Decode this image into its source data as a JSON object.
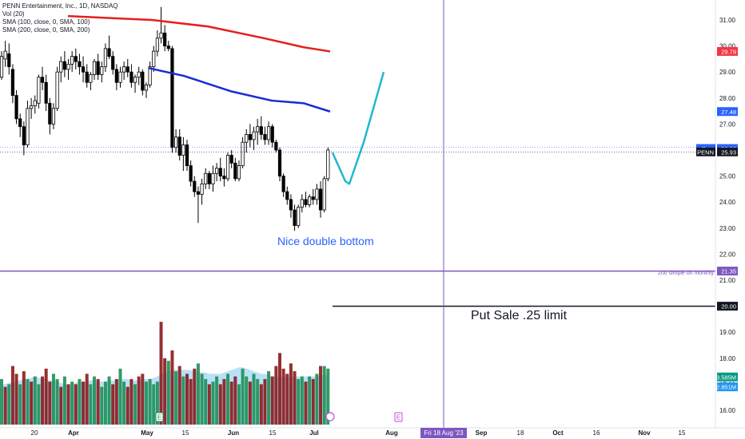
{
  "legend": {
    "title": "PENN Entertainment, Inc., 1D, NASDAQ",
    "vol": "Vol (20)",
    "sma100": "SMA (100, close, 0, SMA, 100)",
    "sma200": "SMA (200, close, 0, SMA, 200)"
  },
  "price_tags": [
    {
      "label": "29.79",
      "value": 29.79,
      "color": "#f23645"
    },
    {
      "label": "27.48",
      "value": 27.48,
      "color": "#2962ff"
    },
    {
      "label": "Post",
      "value": 26.06,
      "color": "#2962ff",
      "value_text": "26.06"
    },
    {
      "label": "PENN",
      "value": 25.93,
      "color": "#131722",
      "value_text": "25.93"
    },
    {
      "label": "21.35",
      "value": 21.35,
      "color": "#7e57c2"
    },
    {
      "label": "20.00",
      "value": 20.0,
      "color": "#131722"
    },
    {
      "label": "3.585M",
      "value": 17.28,
      "color": "#089981"
    },
    {
      "label": "2.851M",
      "value": 16.9,
      "color": "#2196f3"
    }
  ],
  "annotations": {
    "double_bottom": "Nice double bottom",
    "put_sale": "Put Sale  .25 limit",
    "sma200_monthly": "200 simple on monthly",
    "cursor_date": "Fri 18 Aug '23",
    "earnings_marker": "E"
  },
  "chart_data": {
    "type": "candlestick",
    "title": "PENN Entertainment, Inc., 1D, NASDAQ",
    "yaxis_ticks": [
      31.0,
      30.0,
      29.0,
      28.0,
      27.0,
      25.0,
      24.0,
      23.0,
      22.0,
      21.0,
      19.0,
      18.0,
      17.0,
      16.0
    ],
    "ylim": [
      15.2,
      31.8
    ],
    "xaxis_ticks": [
      "20",
      "Apr",
      "May",
      "15",
      "Jun",
      "15",
      "Jul",
      "Aug",
      "Sep",
      "18",
      "Oct",
      "16",
      "Nov",
      "15"
    ],
    "candles": [
      [
        28.8,
        29.8,
        28.7,
        29.6
      ],
      [
        29.5,
        30.2,
        29.2,
        29.8
      ],
      [
        29.7,
        30.1,
        28.9,
        29.2
      ],
      [
        29.1,
        29.3,
        27.8,
        28.1
      ],
      [
        28.1,
        28.3,
        27.0,
        27.2
      ],
      [
        27.2,
        27.4,
        26.5,
        26.9
      ],
      [
        26.9,
        27.1,
        25.8,
        26.2
      ],
      [
        26.2,
        27.9,
        26.1,
        27.6
      ],
      [
        27.6,
        28.0,
        27.2,
        27.7
      ],
      [
        27.7,
        28.1,
        27.4,
        27.9
      ],
      [
        27.8,
        28.9,
        27.6,
        28.8
      ],
      [
        28.8,
        29.2,
        28.3,
        28.6
      ],
      [
        28.6,
        28.9,
        27.5,
        27.8
      ],
      [
        27.8,
        28.0,
        26.6,
        27.0
      ],
      [
        27.0,
        27.8,
        26.8,
        27.6
      ],
      [
        27.6,
        29.2,
        27.5,
        29.0
      ],
      [
        29.0,
        29.6,
        28.6,
        29.4
      ],
      [
        29.4,
        29.8,
        28.8,
        29.1
      ],
      [
        29.1,
        29.5,
        28.7,
        29.3
      ],
      [
        29.3,
        29.8,
        29.0,
        29.6
      ],
      [
        29.6,
        29.9,
        29.1,
        29.4
      ],
      [
        29.4,
        29.7,
        28.9,
        29.2
      ],
      [
        29.2,
        29.6,
        28.6,
        29.0
      ],
      [
        29.0,
        29.3,
        28.4,
        28.6
      ],
      [
        28.6,
        29.0,
        28.3,
        28.9
      ],
      [
        28.9,
        29.5,
        28.7,
        29.4
      ],
      [
        29.4,
        29.7,
        28.7,
        28.9
      ],
      [
        28.9,
        29.4,
        28.6,
        29.2
      ],
      [
        29.2,
        30.1,
        29.0,
        29.9
      ],
      [
        29.9,
        30.4,
        29.5,
        29.6
      ],
      [
        29.6,
        29.8,
        28.9,
        29.1
      ],
      [
        29.1,
        29.3,
        28.3,
        28.6
      ],
      [
        28.6,
        29.2,
        28.4,
        29.0
      ],
      [
        29.0,
        29.4,
        28.7,
        29.2
      ],
      [
        29.2,
        29.5,
        28.8,
        29.0
      ],
      [
        29.0,
        29.3,
        28.4,
        28.6
      ],
      [
        28.6,
        28.9,
        28.2,
        28.8
      ],
      [
        28.8,
        29.2,
        28.5,
        29.0
      ],
      [
        29.0,
        29.1,
        28.1,
        28.3
      ],
      [
        28.3,
        28.6,
        28.0,
        28.5
      ],
      [
        28.5,
        29.4,
        28.4,
        29.2
      ],
      [
        29.2,
        30.0,
        29.0,
        29.8
      ],
      [
        29.8,
        30.6,
        29.6,
        30.3
      ],
      [
        30.3,
        31.5,
        30.1,
        30.5
      ],
      [
        30.5,
        30.8,
        29.8,
        30.0
      ],
      [
        30.0,
        30.2,
        29.8,
        29.9
      ],
      [
        29.9,
        30.0,
        25.9,
        26.1
      ],
      [
        26.1,
        26.8,
        25.9,
        26.5
      ],
      [
        26.5,
        26.8,
        25.6,
        25.8
      ],
      [
        25.8,
        26.5,
        25.2,
        26.2
      ],
      [
        26.2,
        26.4,
        25.2,
        25.4
      ],
      [
        25.4,
        25.6,
        24.6,
        24.8
      ],
      [
        24.8,
        25.0,
        24.2,
        24.4
      ],
      [
        24.4,
        24.6,
        23.2,
        24.3
      ],
      [
        24.3,
        24.9,
        23.9,
        24.7
      ],
      [
        24.7,
        25.3,
        24.5,
        25.1
      ],
      [
        25.1,
        25.2,
        24.5,
        24.7
      ],
      [
        24.7,
        25.4,
        24.4,
        25.1
      ],
      [
        25.1,
        25.5,
        24.8,
        25.3
      ],
      [
        25.3,
        25.7,
        24.8,
        25.0
      ],
      [
        25.0,
        25.3,
        24.6,
        24.9
      ],
      [
        24.9,
        25.9,
        24.8,
        25.8
      ],
      [
        25.8,
        26.0,
        25.3,
        25.5
      ],
      [
        25.5,
        25.7,
        24.8,
        24.9
      ],
      [
        24.9,
        25.6,
        24.8,
        25.4
      ],
      [
        25.4,
        26.5,
        25.3,
        26.3
      ],
      [
        26.3,
        26.8,
        25.9,
        26.6
      ],
      [
        26.6,
        27.0,
        26.1,
        26.4
      ],
      [
        26.4,
        26.9,
        26.0,
        26.7
      ],
      [
        26.7,
        27.2,
        26.2,
        26.9
      ],
      [
        26.9,
        27.3,
        26.4,
        26.6
      ],
      [
        26.6,
        26.9,
        26.2,
        26.4
      ],
      [
        26.4,
        27.1,
        26.2,
        26.9
      ],
      [
        26.9,
        27.0,
        26.1,
        26.3
      ],
      [
        26.3,
        26.4,
        25.9,
        26.0
      ],
      [
        26.0,
        26.1,
        24.8,
        25.0
      ],
      [
        25.0,
        25.1,
        24.2,
        24.4
      ],
      [
        24.4,
        24.6,
        23.9,
        24.1
      ],
      [
        24.1,
        24.3,
        23.4,
        23.7
      ],
      [
        23.7,
        23.9,
        22.9,
        23.1
      ],
      [
        23.1,
        23.9,
        23.0,
        23.8
      ],
      [
        23.8,
        24.3,
        23.6,
        24.1
      ],
      [
        24.1,
        24.4,
        23.8,
        23.9
      ],
      [
        23.9,
        24.3,
        23.8,
        24.2
      ],
      [
        24.2,
        24.5,
        23.9,
        24.1
      ],
      [
        24.1,
        24.7,
        23.9,
        24.5
      ],
      [
        24.5,
        24.8,
        23.4,
        23.7
      ],
      [
        23.7,
        25.0,
        23.6,
        24.9
      ],
      [
        24.9,
        26.1,
        24.8,
        26.0
      ]
    ],
    "volume": [
      [
        17.2,
        1
      ],
      [
        16.9,
        0
      ],
      [
        17.0,
        1
      ],
      [
        17.7,
        0
      ],
      [
        17.4,
        0
      ],
      [
        17.0,
        1
      ],
      [
        17.5,
        0
      ],
      [
        17.2,
        1
      ],
      [
        17.1,
        0
      ],
      [
        17.3,
        1
      ],
      [
        17.0,
        1
      ],
      [
        17.3,
        0
      ],
      [
        17.6,
        0
      ],
      [
        17.1,
        0
      ],
      [
        17.4,
        1
      ],
      [
        17.2,
        1
      ],
      [
        16.9,
        0
      ],
      [
        17.3,
        1
      ],
      [
        17.0,
        0
      ],
      [
        17.1,
        1
      ],
      [
        17.0,
        0
      ],
      [
        17.2,
        1
      ],
      [
        17.1,
        0
      ],
      [
        17.4,
        0
      ],
      [
        17.0,
        1
      ],
      [
        17.3,
        1
      ],
      [
        17.2,
        0
      ],
      [
        16.9,
        1
      ],
      [
        17.1,
        1
      ],
      [
        17.3,
        1
      ],
      [
        17.0,
        0
      ],
      [
        17.2,
        0
      ],
      [
        17.6,
        1
      ],
      [
        17.1,
        1
      ],
      [
        16.9,
        0
      ],
      [
        17.2,
        0
      ],
      [
        17.0,
        1
      ],
      [
        17.3,
        0
      ],
      [
        17.4,
        0
      ],
      [
        17.1,
        1
      ],
      [
        17.2,
        1
      ],
      [
        17.0,
        1
      ],
      [
        17.1,
        1
      ],
      [
        19.4,
        0
      ],
      [
        18.0,
        0
      ],
      [
        17.9,
        1
      ],
      [
        18.3,
        0
      ],
      [
        17.5,
        1
      ],
      [
        17.7,
        0
      ],
      [
        17.3,
        1
      ],
      [
        17.4,
        0
      ],
      [
        17.2,
        0
      ],
      [
        17.6,
        0
      ],
      [
        17.8,
        1
      ],
      [
        17.4,
        1
      ],
      [
        17.2,
        1
      ],
      [
        17.0,
        0
      ],
      [
        17.1,
        1
      ],
      [
        17.3,
        1
      ],
      [
        17.0,
        0
      ],
      [
        17.2,
        0
      ],
      [
        17.4,
        1
      ],
      [
        17.1,
        0
      ],
      [
        17.3,
        0
      ],
      [
        17.0,
        1
      ],
      [
        17.6,
        1
      ],
      [
        17.3,
        1
      ],
      [
        17.1,
        0
      ],
      [
        17.4,
        1
      ],
      [
        17.2,
        1
      ],
      [
        17.0,
        0
      ],
      [
        17.2,
        0
      ],
      [
        17.5,
        1
      ],
      [
        17.3,
        0
      ],
      [
        17.7,
        0
      ],
      [
        18.2,
        0
      ],
      [
        17.6,
        0
      ],
      [
        17.4,
        0
      ],
      [
        17.8,
        0
      ],
      [
        17.5,
        0
      ],
      [
        17.2,
        1
      ],
      [
        17.3,
        1
      ],
      [
        17.1,
        0
      ],
      [
        17.3,
        1
      ],
      [
        17.2,
        0
      ],
      [
        17.4,
        1
      ],
      [
        17.7,
        0
      ],
      [
        17.7,
        1
      ],
      [
        17.6,
        1
      ]
    ],
    "volume_ma": [
      17.0,
      17.0,
      17.05,
      17.1,
      17.1,
      17.15,
      17.2,
      17.2,
      17.25,
      17.3,
      17.25,
      17.2,
      17.2,
      17.15,
      17.1,
      17.1,
      17.05,
      17.0,
      17.0,
      17.0,
      17.05,
      17.1,
      17.1,
      17.1,
      17.15,
      17.15,
      17.1,
      17.1,
      17.1,
      17.15,
      17.15,
      17.15,
      17.2,
      17.2,
      17.2,
      17.15,
      17.15,
      17.15,
      17.2,
      17.2,
      17.2,
      17.25,
      17.3,
      17.4,
      17.45,
      17.5,
      17.55,
      17.55,
      17.55,
      17.55,
      17.55,
      17.55,
      17.5,
      17.5,
      17.45,
      17.45,
      17.4,
      17.4,
      17.4,
      17.4,
      17.45,
      17.5,
      17.55,
      17.6,
      17.65,
      17.65,
      17.6,
      17.55,
      17.5,
      17.45,
      17.4,
      17.4,
      17.35,
      17.3,
      17.3,
      17.3,
      17.3,
      17.3,
      17.3,
      17.3,
      17.3,
      17.3,
      17.3,
      17.3,
      17.3,
      17.3,
      17.35,
      17.35,
      17.35
    ],
    "sma100": [
      [
        186,
        29.15
      ],
      [
        230,
        28.85
      ],
      [
        290,
        28.25
      ],
      [
        340,
        27.9
      ],
      [
        380,
        27.8
      ],
      [
        413,
        27.48
      ]
    ],
    "sma200": [
      [
        85,
        31.15
      ],
      [
        190,
        31.0
      ],
      [
        260,
        30.75
      ],
      [
        330,
        30.3
      ],
      [
        380,
        29.95
      ],
      [
        413,
        29.79
      ]
    ],
    "projection": [
      [
        416,
        25.9
      ],
      [
        432,
        24.8
      ],
      [
        437,
        24.7
      ],
      [
        455,
        26.3
      ],
      [
        480,
        29.0
      ]
    ],
    "levels": [
      {
        "value": 21.35,
        "color": "#7e57c2"
      },
      {
        "value": 20.0,
        "color": "#131722"
      }
    ],
    "cursor_x": 555
  }
}
